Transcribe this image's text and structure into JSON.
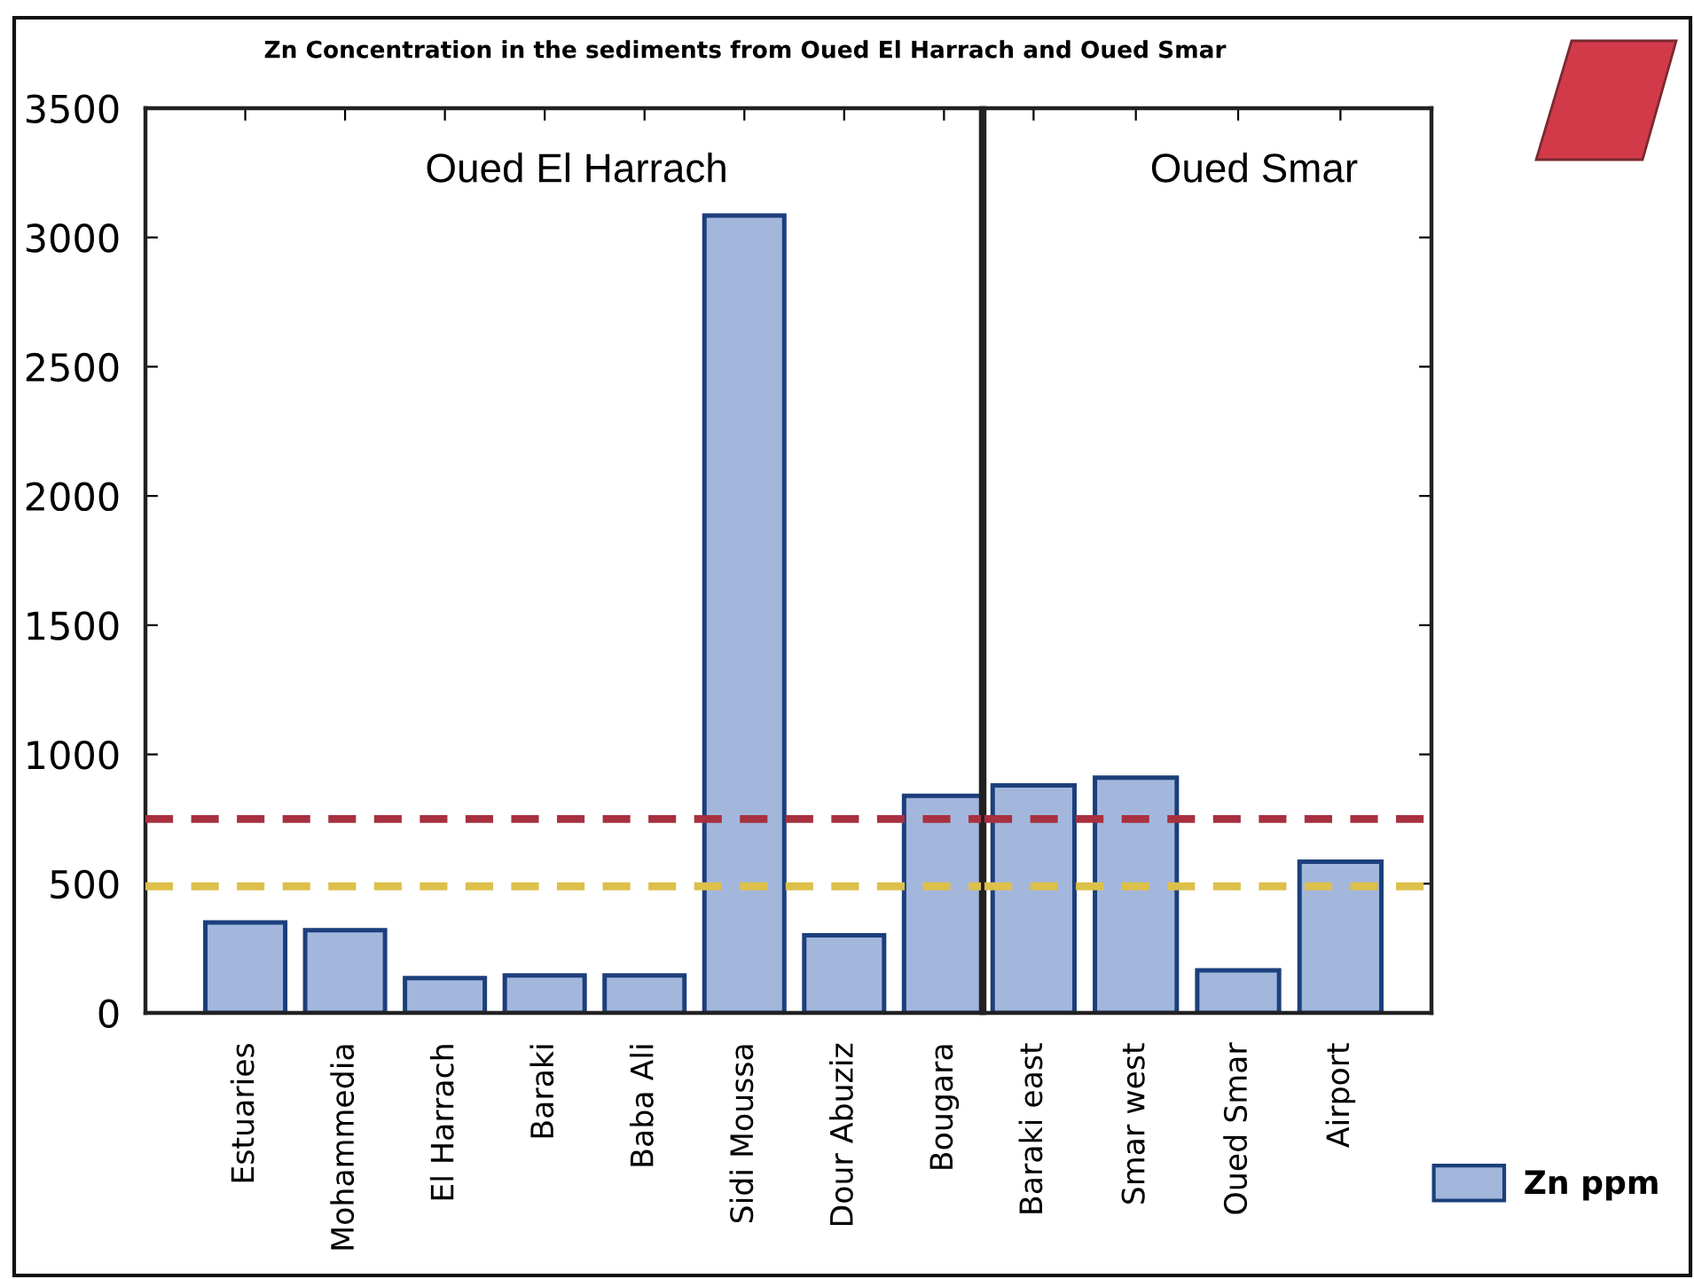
{
  "chart_data": [
    {
      "type": "bar",
      "title": "Zn Concentration in the sediments from Oued El Harrach and Oued Smar",
      "subtitle": "Oued El Harrach",
      "categories": [
        "Estuaries",
        "Mohammedia",
        "El Harrach",
        "Baraki",
        "Baba Ali",
        "Sidi Moussa",
        "Dour Abuziz",
        "Bougara"
      ],
      "series": [
        {
          "color": "#a3b7dc",
          "values": [
            350,
            320,
            135,
            145,
            145,
            3085,
            300,
            840
          ]
        }
      ],
      "ylim": [
        0,
        3500
      ],
      "yticks": [
        0,
        500,
        1000,
        1500,
        2000,
        2500,
        3000,
        3500
      ],
      "ref_lines": [
        {
          "axis": "y",
          "value": 750,
          "color": "#a8303f",
          "line_style": "dashed"
        },
        {
          "axis": "y",
          "value": 490,
          "color": "#dcc04a",
          "line_style": "dashed"
        }
      ]
    },
    {
      "type": "bar",
      "subtitle": "Oued Smar",
      "categories": [
        "Baraki east",
        "Smar west",
        "Oued Smar",
        "Airport"
      ],
      "series": [
        {
          "name": "Zn ppm",
          "color": "#a3b7dc",
          "values": [
            880,
            910,
            165,
            585
          ]
        }
      ],
      "ylim": [
        0,
        3500
      ],
      "yticks": [
        0,
        500,
        1000,
        1500,
        2000,
        2500,
        3000,
        3500
      ],
      "tick_labels": "x",
      "legend": "bottom right",
      "ref_lines": [
        {
          "axis": "y",
          "value": 750,
          "color": "#a8303f",
          "line_style": "dashed"
        },
        {
          "axis": "y",
          "value": 490,
          "color": "#dcc04a",
          "line_style": "dashed"
        }
      ]
    }
  ]
}
